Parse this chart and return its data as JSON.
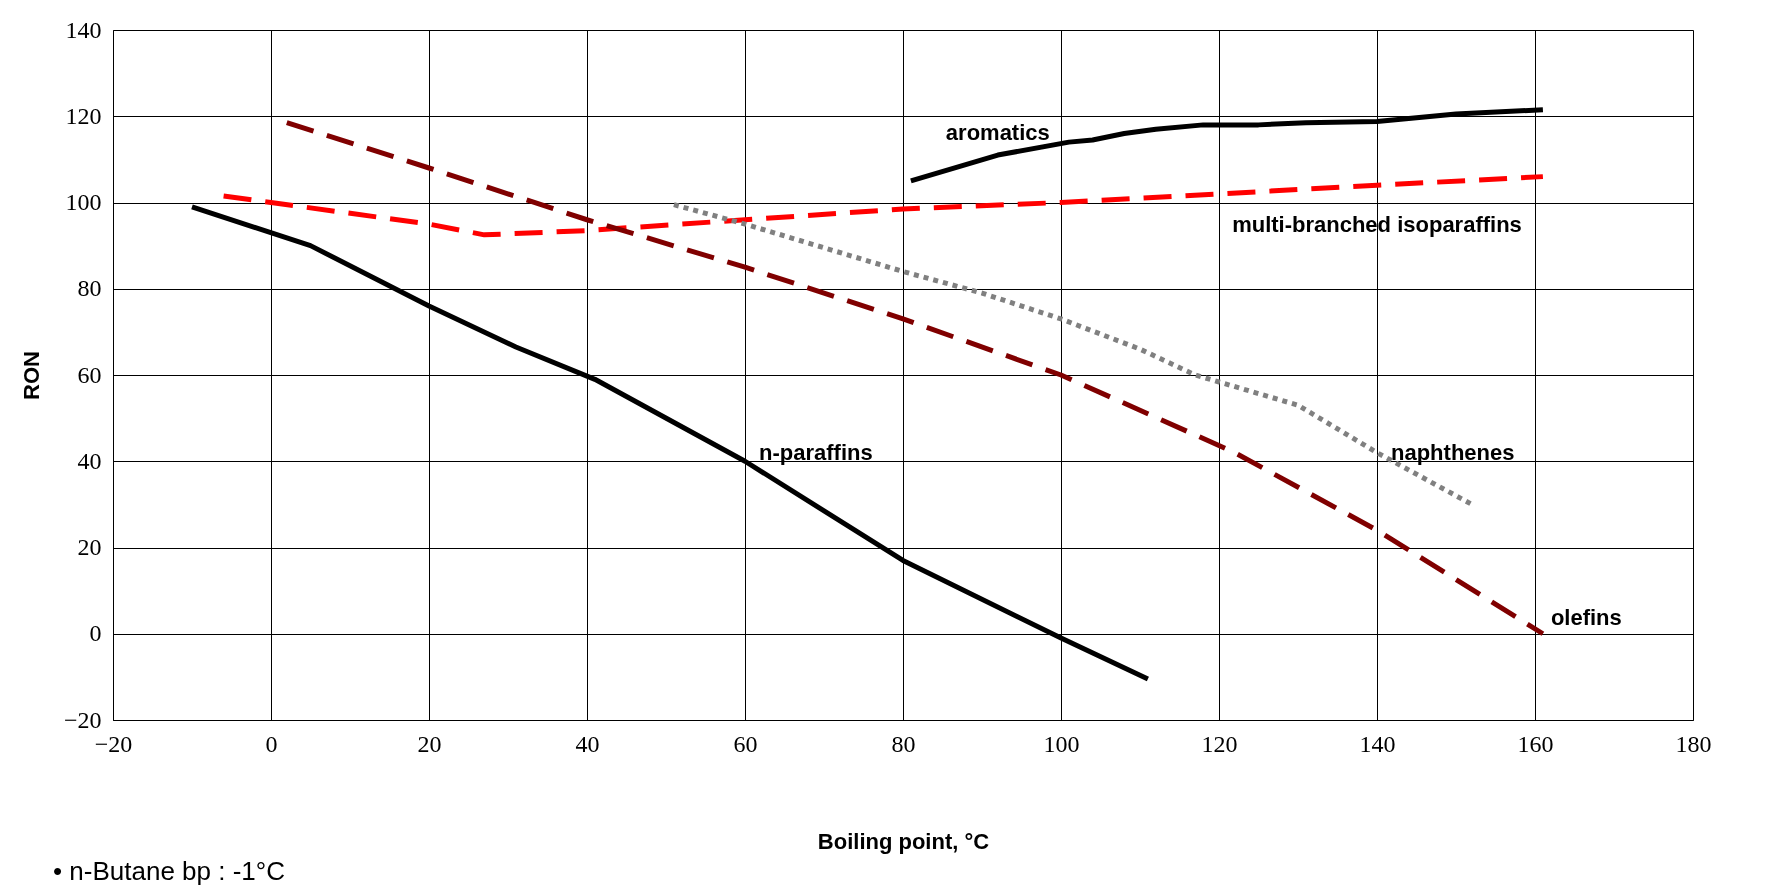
{
  "chart_data": {
    "type": "line",
    "xlabel": "Boiling point, °C",
    "ylabel": "RON",
    "xlim": [
      -20,
      180
    ],
    "xticks": [
      -20,
      0,
      20,
      40,
      60,
      80,
      100,
      120,
      140,
      160,
      180
    ],
    "ylim": [
      -20,
      140
    ],
    "yticks": [
      -20,
      0,
      20,
      40,
      60,
      80,
      100,
      120,
      140
    ],
    "grid": true,
    "marker": "none",
    "annotations": [
      "•     n-Butane bp : -1°C"
    ],
    "series": [
      {
        "name": "aromatics",
        "color": "#000000",
        "line_style": "solid",
        "x": [
          81,
          92,
          101,
          104,
          108,
          112,
          118,
          125,
          131,
          140,
          150,
          161
        ],
        "values": [
          105,
          111,
          114,
          114.5,
          116,
          117,
          118,
          118,
          118.5,
          118.8,
          120.5,
          121.5
        ]
      },
      {
        "name": "multi-branched isoparaffins",
        "color": "#ff0000",
        "line_style": "dashed",
        "x": [
          -6,
          0,
          20,
          27,
          40,
          60,
          80,
          100,
          120,
          140,
          161
        ],
        "values": [
          101.5,
          100,
          95,
          92.5,
          93.5,
          96,
          98.5,
          100,
          102,
          104,
          106
        ]
      },
      {
        "name": "naphthenes",
        "color": "#808080",
        "line_style": "dotted",
        "x": [
          51,
          60,
          80,
          90,
          100,
          110,
          117,
          130,
          140,
          152
        ],
        "values": [
          99.5,
          95,
          84,
          79,
          73,
          66,
          60,
          53,
          42,
          30
        ]
      },
      {
        "name": "n-paraffins",
        "color": "#000000",
        "line_style": "solid",
        "x": [
          -10,
          5,
          20,
          31,
          41,
          60,
          80,
          100,
          111
        ],
        "values": [
          99,
          90,
          76,
          66.5,
          59,
          40,
          17,
          -1,
          -10.5
        ]
      },
      {
        "name": "olefins",
        "color": "#800000",
        "line_style": "dashed",
        "x": [
          2,
          20,
          40,
          60,
          80,
          100,
          122,
          140,
          161
        ],
        "values": [
          118.5,
          108,
          96,
          85,
          73,
          60,
          42,
          24,
          0
        ]
      }
    ]
  }
}
